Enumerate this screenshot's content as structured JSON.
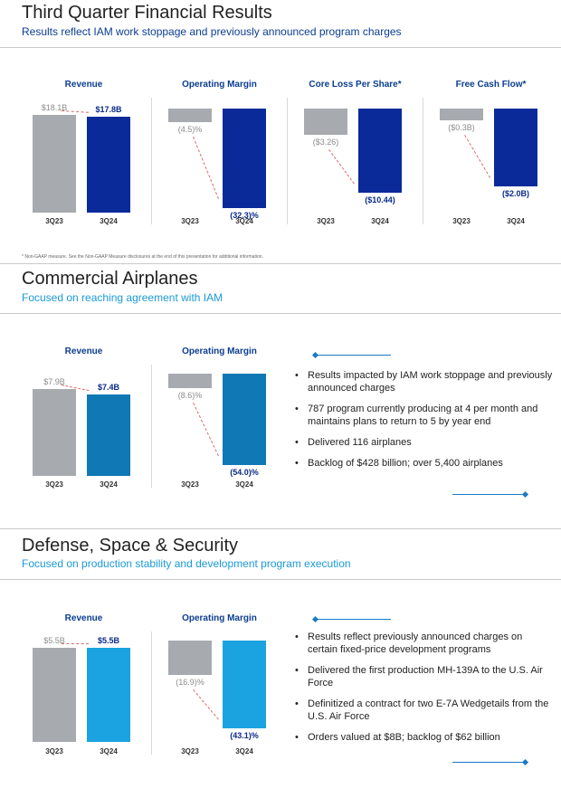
{
  "q3": {
    "title": "Third Quarter Financial Results",
    "subtitle": "Results reflect IAM work stoppage and previously announced program charges",
    "footnote": "* Non-GAAP measure. See the Non-GAAP Measure disclosures at the end of this presentation for additional information."
  },
  "bca": {
    "title": "Commercial Airplanes",
    "subtitle": "Focused on reaching agreement with IAM",
    "bullets": [
      "Results impacted by IAM work stoppage and previously announced charges",
      "787 program currently producing at 4 per month and maintains plans to return to 5 by year end",
      "Delivered 116 airplanes",
      "Backlog of $428 billion; over 5,400 airplanes"
    ]
  },
  "bds": {
    "title": "Defense, Space & Security",
    "subtitle": "Focused on production stability and development program execution",
    "bullets": [
      "Results reflect previously announced charges on certain fixed-price development programs",
      "Delivered the first production MH-139A to the U.S. Air Force",
      "Definitized a contract for two E-7A Wedgetails from the U.S. Air Force",
      "Orders valued at $8B; backlog of $62 billion"
    ]
  },
  "colors": {
    "title_blue": "#0b3d91",
    "subtitle_teal": "#1a9ad6",
    "gray_bar": "#a7abb0",
    "navy_bar": "#0a2a9a",
    "bca_bar": "#0f78b5",
    "bds_bar": "#1aa3e0"
  },
  "chart_data": [
    {
      "type": "bar",
      "title": "Revenue",
      "categories": [
        "3Q23",
        "3Q24"
      ],
      "values": [
        18.1,
        17.8
      ],
      "labels": [
        "$18.1B",
        "$17.8B"
      ]
    },
    {
      "type": "bar",
      "title": "Operating Margin",
      "categories": [
        "3Q23",
        "3Q24"
      ],
      "values": [
        -4.5,
        -32.3
      ],
      "labels": [
        "(4.5)%",
        "(32.3)%"
      ]
    },
    {
      "type": "bar",
      "title": "Core Loss Per Share*",
      "categories": [
        "3Q23",
        "3Q24"
      ],
      "values": [
        -3.26,
        -10.44
      ],
      "labels": [
        "($3.26)",
        "($10.44)"
      ]
    },
    {
      "type": "bar",
      "title": "Free Cash Flow*",
      "categories": [
        "3Q23",
        "3Q24"
      ],
      "values": [
        -0.3,
        -2.0
      ],
      "labels": [
        "($0.3B)",
        "($2.0B)"
      ]
    },
    {
      "type": "bar",
      "title": "Revenue",
      "categories": [
        "3Q23",
        "3Q24"
      ],
      "values": [
        7.9,
        7.4
      ],
      "labels": [
        "$7.9B",
        "$7.4B"
      ]
    },
    {
      "type": "bar",
      "title": "Operating Margin",
      "categories": [
        "3Q23",
        "3Q24"
      ],
      "values": [
        -8.6,
        -54.0
      ],
      "labels": [
        "(8.6)%",
        "(54.0)%"
      ]
    },
    {
      "type": "bar",
      "title": "Revenue",
      "categories": [
        "3Q23",
        "3Q24"
      ],
      "values": [
        5.5,
        5.5
      ],
      "labels": [
        "$5.5B",
        "$5.5B"
      ]
    },
    {
      "type": "bar",
      "title": "Operating Margin",
      "categories": [
        "3Q23",
        "3Q24"
      ],
      "values": [
        -16.9,
        -43.1
      ],
      "labels": [
        "(16.9)%",
        "(43.1)%"
      ]
    }
  ]
}
